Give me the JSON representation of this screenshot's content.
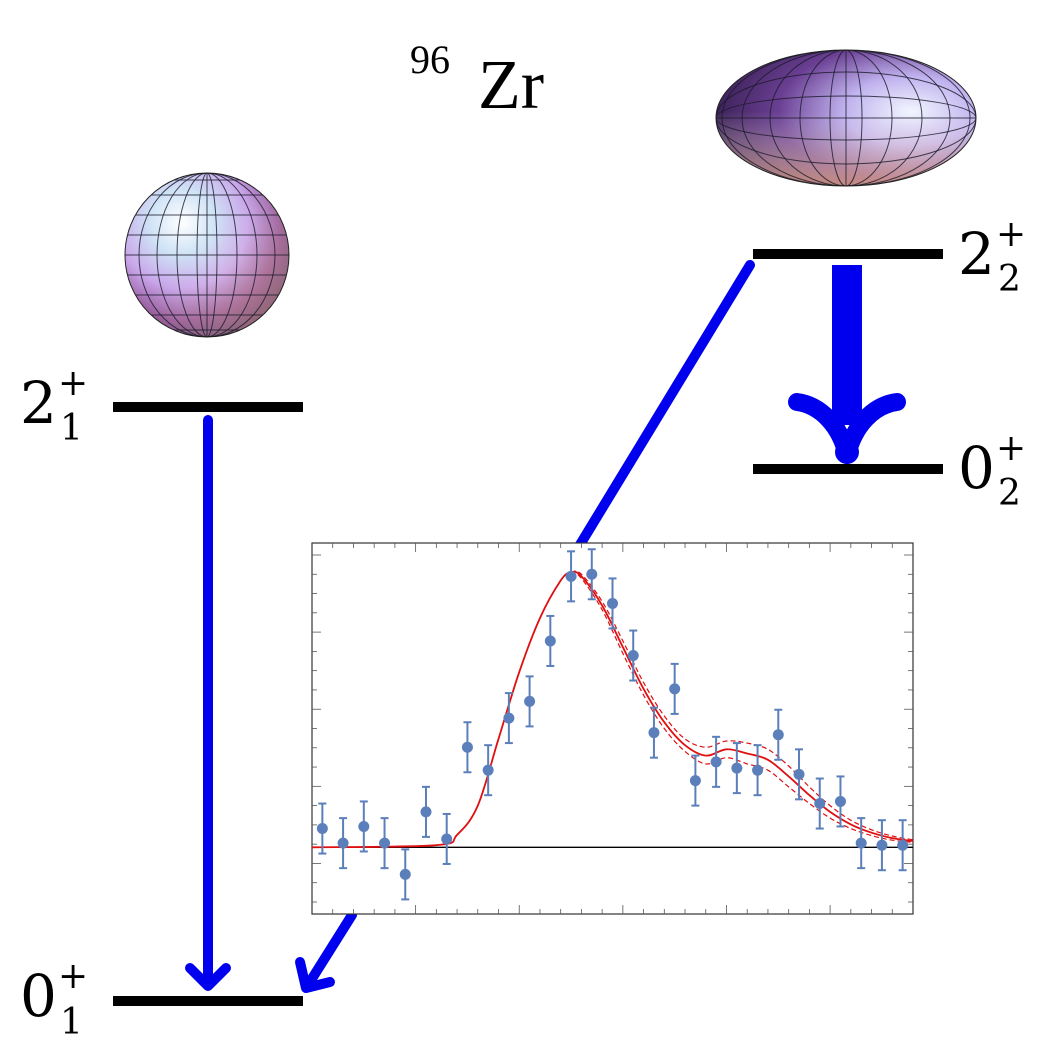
{
  "title": {
    "mass_number": "96",
    "element": "Zr"
  },
  "levels": [
    {
      "id": "2_1",
      "spin": "2",
      "parity": "+",
      "index": "1"
    },
    {
      "id": "0_1",
      "spin": "0",
      "parity": "+",
      "index": "1"
    },
    {
      "id": "2_2",
      "spin": "2",
      "parity": "+",
      "index": "2"
    },
    {
      "id": "0_2",
      "spin": "0",
      "parity": "+",
      "index": "2"
    }
  ],
  "shapes": [
    {
      "name": "spherical-nucleus",
      "kind": "sphere"
    },
    {
      "name": "deformed-nucleus",
      "kind": "prolate-spheroid"
    }
  ],
  "colors": {
    "transition": "#0000ee",
    "level": "#000000",
    "fit": "#e01010",
    "data": "#5b7fba"
  },
  "chart_data": {
    "type": "scatter",
    "xlabel": "",
    "ylabel": "",
    "grid": false,
    "xlim": [
      0,
      29
    ],
    "ylim": [
      -1.6,
      7.3
    ],
    "series": [
      {
        "kind": "points-with-error-bars",
        "x": [
          0.5,
          1.5,
          2.5,
          3.5,
          4.5,
          5.5,
          6.5,
          7.5,
          8.5,
          9.5,
          10.5,
          11.5,
          12.5,
          13.5,
          14.5,
          15.5,
          16.5,
          17.5,
          18.5,
          19.5,
          20.5,
          21.5,
          22.5,
          23.5,
          24.5,
          25.5,
          26.5,
          27.5,
          28.5
        ],
        "y": [
          0.45,
          0.1,
          0.5,
          0.1,
          -0.65,
          0.85,
          0.2,
          2.4,
          1.85,
          3.1,
          3.5,
          4.95,
          6.5,
          6.55,
          5.85,
          4.6,
          2.75,
          3.8,
          1.6,
          2.05,
          1.9,
          1.85,
          2.7,
          1.75,
          1.05,
          1.1,
          0.1,
          0.05,
          0.05
        ],
        "err": [
          0.6,
          0.6,
          0.6,
          0.6,
          0.6,
          0.6,
          0.6,
          0.6,
          0.6,
          0.6,
          0.6,
          0.6,
          0.6,
          0.6,
          0.6,
          0.6,
          0.6,
          0.6,
          0.6,
          0.6,
          0.6,
          0.6,
          0.6,
          0.6,
          0.6,
          0.6,
          0.6,
          0.6,
          0.6
        ]
      },
      {
        "kind": "fit-line",
        "style": "solid",
        "x": [
          0,
          6,
          7,
          8,
          9,
          10,
          11,
          12,
          12.5,
          13,
          14,
          15,
          16,
          17,
          18,
          19,
          20,
          21,
          22,
          23,
          24,
          25,
          26,
          27,
          28,
          29
        ],
        "y": [
          0,
          0.05,
          0.3,
          1.0,
          2.6,
          4.2,
          5.5,
          6.4,
          6.6,
          6.5,
          5.8,
          4.8,
          3.8,
          3.0,
          2.45,
          2.2,
          2.35,
          2.25,
          2.1,
          1.7,
          1.25,
          0.85,
          0.55,
          0.35,
          0.22,
          0.15
        ]
      },
      {
        "kind": "fit-band-upper",
        "style": "dashed",
        "x": [
          0,
          6,
          7,
          8,
          9,
          10,
          11,
          12,
          12.5,
          13,
          14,
          15,
          16,
          17,
          18,
          19,
          20,
          21,
          22,
          23,
          24,
          25,
          26,
          27,
          28,
          29
        ],
        "y": [
          0,
          0.05,
          0.3,
          1.0,
          2.6,
          4.2,
          5.5,
          6.4,
          6.6,
          6.55,
          5.9,
          4.95,
          3.95,
          3.15,
          2.6,
          2.4,
          2.55,
          2.5,
          2.35,
          1.95,
          1.45,
          1.0,
          0.65,
          0.42,
          0.27,
          0.18
        ]
      },
      {
        "kind": "fit-band-lower",
        "style": "dashed",
        "x": [
          0,
          6,
          7,
          8,
          9,
          10,
          11,
          12,
          12.5,
          13,
          14,
          15,
          16,
          17,
          18,
          19,
          20,
          21,
          22,
          23,
          24,
          25,
          26,
          27,
          28,
          29
        ],
        "y": [
          0,
          0.05,
          0.3,
          1.0,
          2.6,
          4.2,
          5.5,
          6.4,
          6.6,
          6.45,
          5.7,
          4.65,
          3.65,
          2.85,
          2.3,
          2.0,
          2.15,
          2.0,
          1.85,
          1.45,
          1.05,
          0.7,
          0.45,
          0.28,
          0.17,
          0.12
        ]
      }
    ]
  }
}
